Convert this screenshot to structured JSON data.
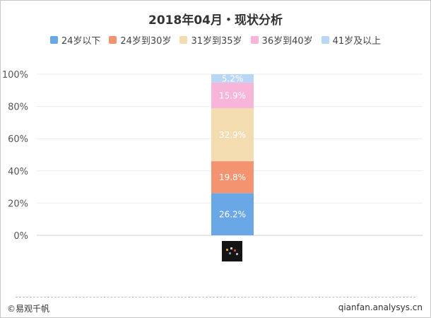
{
  "header": {
    "title": "2018年04月・现状分析"
  },
  "chart_data": {
    "type": "bar",
    "stacked": true,
    "categories": [
      ""
    ],
    "series": [
      {
        "name": "24岁以下",
        "values": [
          26.2
        ],
        "label": "26.2%",
        "color": "#6aa7e6"
      },
      {
        "name": "24岁到30岁",
        "values": [
          19.8
        ],
        "label": "19.8%",
        "color": "#f4936f"
      },
      {
        "name": "31岁到35岁",
        "values": [
          32.9
        ],
        "label": "32.9%",
        "color": "#f3dcb0"
      },
      {
        "name": "36岁到40岁",
        "values": [
          15.9
        ],
        "label": "15.9%",
        "color": "#f7b5d9"
      },
      {
        "name": "41岁及以上",
        "values": [
          5.2
        ],
        "label": "5.2%",
        "color": "#b9d6f5"
      }
    ],
    "ylim": [
      0,
      100
    ],
    "yticks": [
      "0%",
      "20%",
      "40%",
      "60%",
      "80%",
      "100%"
    ],
    "grid": true,
    "legend": "top"
  },
  "footer": {
    "brand": "©易观千帆",
    "url": "qianfan.analysys.cn"
  }
}
